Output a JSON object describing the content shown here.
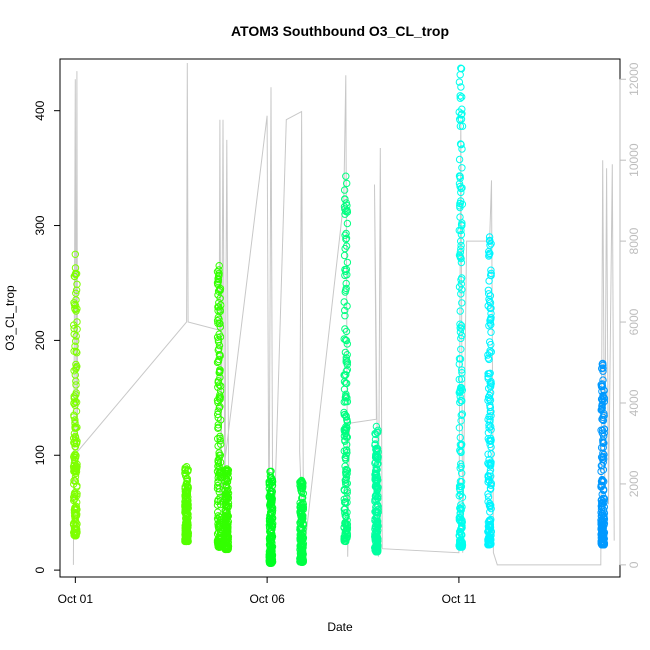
{
  "chart_data": {
    "type": "scatter",
    "title": "ATOM3 Southbound O3_CL_trop",
    "xlabel": "Date",
    "ylabel": "O3_CL_trop",
    "x_ticks": [
      "Oct 01",
      "Oct 06",
      "Oct 11"
    ],
    "x_tick_days": [
      1,
      6,
      11
    ],
    "xlim": [
      0.6,
      15.2
    ],
    "ylim": [
      -6,
      445
    ],
    "y_ticks": [
      0,
      100,
      200,
      300,
      400
    ],
    "y2_ticks": [
      0,
      2000,
      4000,
      6000,
      8000,
      10000,
      12000
    ],
    "y2lim": [
      -300,
      12500
    ],
    "y2_label": "",
    "grid": false,
    "series": [
      {
        "day": 1.0,
        "color": "#7FFF00",
        "min": 30,
        "max": 275
      },
      {
        "day": 3.9,
        "color": "#55FF00",
        "min": 25,
        "max": 90
      },
      {
        "day": 4.75,
        "color": "#33FF00",
        "min": 20,
        "max": 265
      },
      {
        "day": 4.95,
        "color": "#33FF00",
        "min": 18,
        "max": 88
      },
      {
        "day": 6.1,
        "color": "#00FF22",
        "min": 6,
        "max": 86
      },
      {
        "day": 6.9,
        "color": "#00FF44",
        "min": 7,
        "max": 78
      },
      {
        "day": 8.05,
        "color": "#00FF80",
        "min": 25,
        "max": 343
      },
      {
        "day": 8.85,
        "color": "#00FFA0",
        "min": 16,
        "max": 125
      },
      {
        "day": 11.05,
        "color": "#00FFEE",
        "min": 20,
        "max": 437
      },
      {
        "day": 11.8,
        "color": "#00F5FF",
        "min": 22,
        "max": 290
      },
      {
        "day": 14.75,
        "color": "#0099FF",
        "min": 22,
        "max": 180
      }
    ],
    "altitude_line": {
      "color": "#c8c8c8",
      "points": [
        [
          0.95,
          0
        ],
        [
          1.0,
          12000
        ],
        [
          1.02,
          3000
        ],
        [
          1.04,
          12200
        ],
        [
          1.06,
          2800
        ],
        [
          3.9,
          6000
        ],
        [
          3.92,
          12400
        ],
        [
          3.94,
          6000
        ],
        [
          4.75,
          5800
        ],
        [
          4.77,
          11000
        ],
        [
          4.8,
          1500
        ],
        [
          4.85,
          11000
        ],
        [
          4.9,
          1500
        ],
        [
          4.95,
          10500
        ],
        [
          5.0,
          1500
        ],
        [
          4.8,
          1800
        ],
        [
          6.0,
          11100
        ],
        [
          6.05,
          400
        ],
        [
          6.1,
          11800
        ],
        [
          6.15,
          0
        ],
        [
          6.5,
          11000
        ],
        [
          6.9,
          11200
        ],
        [
          6.95,
          0
        ],
        [
          6.85,
          2800
        ],
        [
          6.9,
          11000
        ],
        [
          6.95,
          200
        ],
        [
          8.0,
          9000
        ],
        [
          8.05,
          12100
        ],
        [
          8.1,
          200
        ],
        [
          8.15,
          3500
        ],
        [
          8.85,
          3600
        ],
        [
          8.8,
          9400
        ],
        [
          8.9,
          200
        ],
        [
          8.95,
          10300
        ],
        [
          9.0,
          400
        ],
        [
          11.0,
          300
        ],
        [
          11.05,
          11000
        ],
        [
          11.1,
          300
        ],
        [
          11.2,
          8000
        ],
        [
          11.8,
          8000
        ],
        [
          11.85,
          9500
        ],
        [
          11.9,
          300
        ],
        [
          12.0,
          0
        ],
        [
          14.7,
          0
        ],
        [
          14.75,
          10000
        ],
        [
          14.8,
          2000
        ],
        [
          14.85,
          9800
        ],
        [
          14.9,
          1500
        ],
        [
          15.0,
          9900
        ],
        [
          15.05,
          600
        ]
      ]
    }
  }
}
